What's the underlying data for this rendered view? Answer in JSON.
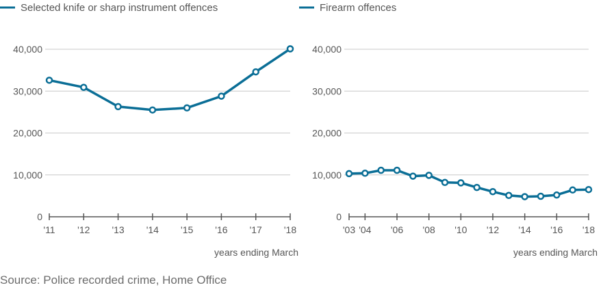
{
  "colors": {
    "series": "#0a6e96",
    "grid": "#c8c8c8",
    "axis": "#555555",
    "text": "#555555",
    "marker_fill": "#ffffff"
  },
  "source": "Source: Police recorded crime, Home Office",
  "chart_data": [
    {
      "type": "line",
      "legend_label": "Selected knife or sharp instrument offences",
      "xlabel": "years ending March",
      "ylim": [
        0,
        40000
      ],
      "yticks": [
        0,
        10000,
        20000,
        30000,
        40000
      ],
      "ytick_labels": [
        "0",
        "10,000",
        "20,000",
        "30,000",
        "40,000"
      ],
      "grid": true,
      "legend_position": "top-left",
      "x": [
        2011,
        2012,
        2013,
        2014,
        2015,
        2016,
        2017,
        2018
      ],
      "xlim": [
        2011,
        2018
      ],
      "xticks": [
        2011,
        2012,
        2013,
        2014,
        2015,
        2016,
        2017,
        2018
      ],
      "xtick_labels": [
        "'11",
        "'12",
        "'13",
        "'14",
        "'15",
        "'16",
        "'17",
        "'18"
      ],
      "values": [
        32600,
        30900,
        26300,
        25500,
        26000,
        28800,
        34600,
        40100
      ]
    },
    {
      "type": "line",
      "legend_label": "Firearm offences",
      "xlabel": "years ending March",
      "ylim": [
        0,
        40000
      ],
      "yticks": [
        0,
        10000,
        20000,
        30000,
        40000
      ],
      "ytick_labels": [
        "0",
        "10,000",
        "20,000",
        "30,000",
        "40,000"
      ],
      "grid": true,
      "legend_position": "top-left",
      "x": [
        2003,
        2004,
        2005,
        2006,
        2007,
        2008,
        2009,
        2010,
        2011,
        2012,
        2013,
        2014,
        2015,
        2016,
        2017,
        2018
      ],
      "xlim": [
        2003,
        2018
      ],
      "xticks": [
        2003,
        2004,
        2006,
        2008,
        2010,
        2012,
        2014,
        2016,
        2018
      ],
      "xtick_labels": [
        "'03",
        "'04",
        "'06",
        "'08",
        "'10",
        "'12",
        "'14",
        "'16",
        "'18"
      ],
      "values": [
        10300,
        10400,
        11100,
        11100,
        9700,
        9900,
        8200,
        8100,
        7000,
        6000,
        5100,
        4800,
        4900,
        5200,
        6400,
        6500
      ]
    }
  ]
}
